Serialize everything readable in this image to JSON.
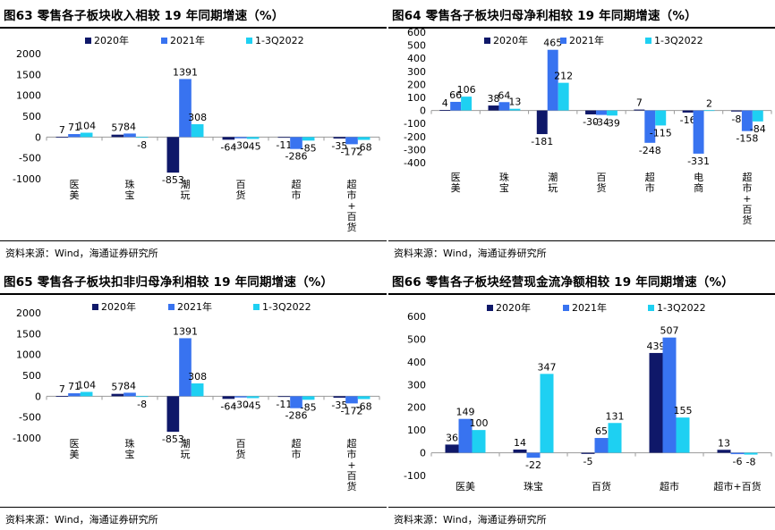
{
  "colors": {
    "s2020": "#0f1869",
    "s2021": "#3873f0",
    "s2022": "#1ed0f2"
  },
  "charts": [
    {
      "title": "图63 零售各子板块收入相较 19 年同期增速（%）",
      "source": "资料来源：Wind，海通证券研究所",
      "chart_data": {
        "type": "bar",
        "categories": [
          "医美",
          "珠宝",
          "潮玩",
          "百货",
          "超市",
          "超市+百货"
        ],
        "series": [
          {
            "name": "2020年",
            "values": [
              7,
              57,
              -853,
              -64,
              -11,
              -35
            ]
          },
          {
            "name": "2021年",
            "values": [
              71,
              84,
              1391,
              -30,
              -286,
              -172
            ]
          },
          {
            "name": "1-3Q2022",
            "values": [
              104,
              -8,
              308,
              -45,
              -85,
              -68
            ]
          }
        ],
        "yticks": [
          2000,
          1500,
          1000,
          500,
          0,
          -500,
          -1000
        ],
        "ylim": [
          -1000,
          2000
        ]
      }
    },
    {
      "title": "图64 零售各子板块归母净利相较 19 年同期增速（%）",
      "source": "资料来源：Wind，海通证券研究所",
      "chart_data": {
        "type": "bar",
        "categories": [
          "医美",
          "珠宝",
          "潮玩",
          "百货",
          "超市",
          "电商",
          "超市+百货"
        ],
        "series": [
          {
            "name": "2020年",
            "values": [
              4,
              38,
              -181,
              -30,
              7,
              -16,
              -8
            ]
          },
          {
            "name": "2021年",
            "values": [
              66,
              64,
              465,
              -34,
              -248,
              -331,
              -158
            ]
          },
          {
            "name": "1-3Q2022",
            "values": [
              106,
              13,
              212,
              -39,
              -115,
              2,
              -84
            ]
          }
        ],
        "yticks": [
          600,
          500,
          400,
          300,
          200,
          100,
          0,
          -100,
          -200,
          -300,
          -400
        ],
        "ylim": [
          -400,
          600
        ]
      }
    },
    {
      "title": "图65 零售各子板块扣非归母净利相较 19 年同期增速（%）",
      "source": "资料来源：Wind，海通证券研究所",
      "chart_data": {
        "type": "bar",
        "categories": [
          "医美",
          "珠宝",
          "潮玩",
          "百货",
          "超市",
          "超市+百货"
        ],
        "series": [
          {
            "name": "2020年",
            "values": [
              7,
              57,
              -853,
              -64,
              -11,
              -35
            ]
          },
          {
            "name": "2021年",
            "values": [
              71,
              84,
              1391,
              -30,
              -286,
              -172
            ]
          },
          {
            "name": "1-3Q2022",
            "values": [
              104,
              -8,
              308,
              -45,
              -85,
              -68
            ]
          }
        ],
        "yticks": [
          2000,
          1500,
          1000,
          500,
          0,
          -500,
          -1000
        ],
        "ylim": [
          -1000,
          2000
        ]
      }
    },
    {
      "title": "图66 零售各子板块经营现金流净额相较 19 年同期增速（%）",
      "source": "资料来源：Wind，海通证券研究所",
      "chart_data": {
        "type": "bar",
        "categories": [
          "医美",
          "珠宝",
          "百货",
          "超市",
          "超市+百货"
        ],
        "series": [
          {
            "name": "2020年",
            "values": [
              36,
              14,
              -5,
              439,
              13
            ]
          },
          {
            "name": "2021年",
            "values": [
              149,
              -22,
              65,
              507,
              -6
            ]
          },
          {
            "name": "1-3Q2022",
            "values": [
              100,
              347,
              131,
              155,
              -8
            ]
          }
        ],
        "yticks": [
          600,
          500,
          400,
          300,
          200,
          100,
          0,
          -100
        ],
        "ylim": [
          -100,
          600
        ]
      }
    }
  ]
}
